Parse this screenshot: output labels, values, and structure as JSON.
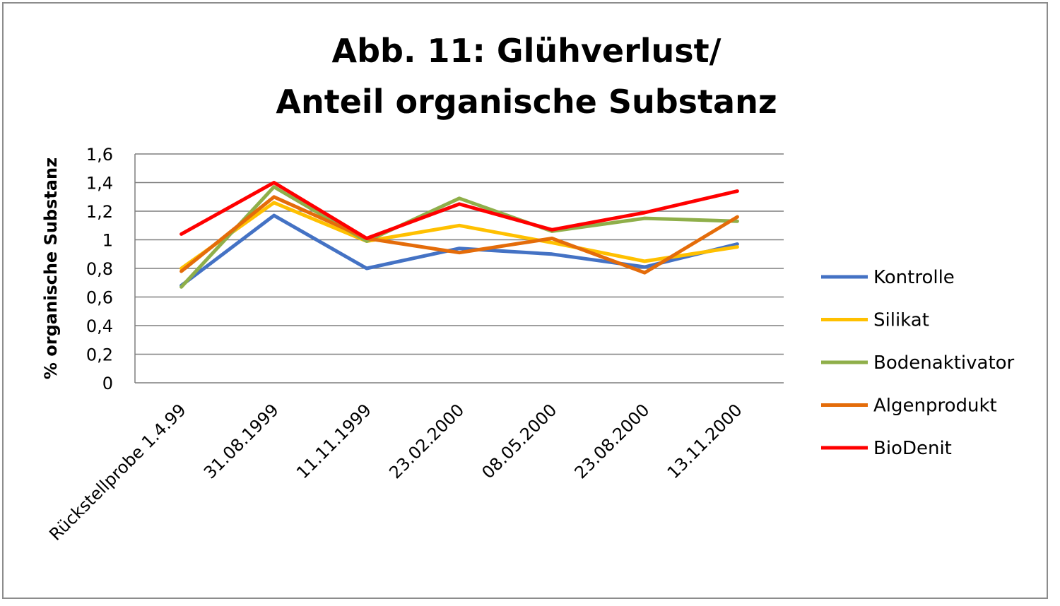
{
  "chart_data": {
    "type": "line",
    "title_line1": "Abb. 11: Glühverlust/",
    "title_line2": "Anteil organische Substanz",
    "ylabel": "% organische Substanz",
    "xlabel": "",
    "ylim": [
      0,
      1.6
    ],
    "yticks": [
      "0",
      "0,2",
      "0,4",
      "0,6",
      "0,8",
      "1",
      "1,2",
      "1,4",
      "1,6"
    ],
    "grid": true,
    "legend_position": "right",
    "categories": [
      "Rückstellprobe 1.4.99",
      "31.08.1999",
      "11.11.1999",
      "23.02.2000",
      "08.05.2000",
      "23.08.2000",
      "13.11.2000"
    ],
    "series": [
      {
        "name": "Kontrolle",
        "color": "#4472c4",
        "values": [
          0.68,
          1.17,
          0.8,
          0.94,
          0.9,
          0.81,
          0.97
        ]
      },
      {
        "name": "Silikat",
        "color": "#ffc000",
        "values": [
          0.8,
          1.26,
          0.99,
          1.1,
          0.98,
          0.85,
          0.95
        ]
      },
      {
        "name": "Bodenaktivator",
        "color": "#8faf4a",
        "values": [
          0.67,
          1.37,
          0.99,
          1.29,
          1.06,
          1.15,
          1.13
        ]
      },
      {
        "name": "Algenprodukt",
        "color": "#e46c0a",
        "values": [
          0.78,
          1.3,
          1.01,
          0.91,
          1.01,
          0.77,
          1.16
        ]
      },
      {
        "name": "BioDenit",
        "color": "#ff0000",
        "values": [
          1.04,
          1.4,
          1.01,
          1.25,
          1.07,
          1.19,
          1.34
        ]
      }
    ]
  }
}
